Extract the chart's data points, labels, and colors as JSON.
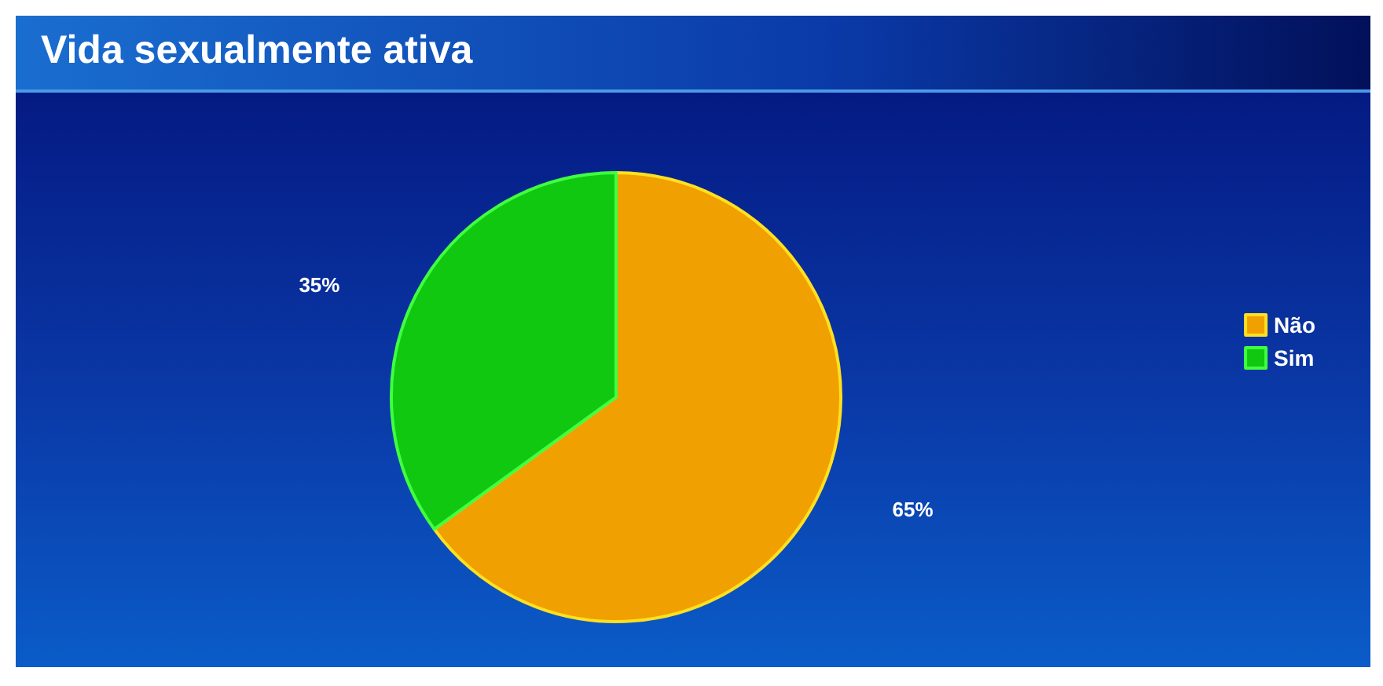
{
  "chart_data": {
    "type": "pie",
    "title": "Vida sexualmente ativa",
    "categories": [
      "Não",
      "Sim"
    ],
    "values": [
      65,
      35
    ],
    "colors": [
      "#f0a000",
      "#10c810"
    ],
    "value_labels": [
      "65%",
      "35%"
    ],
    "legend": "right"
  }
}
